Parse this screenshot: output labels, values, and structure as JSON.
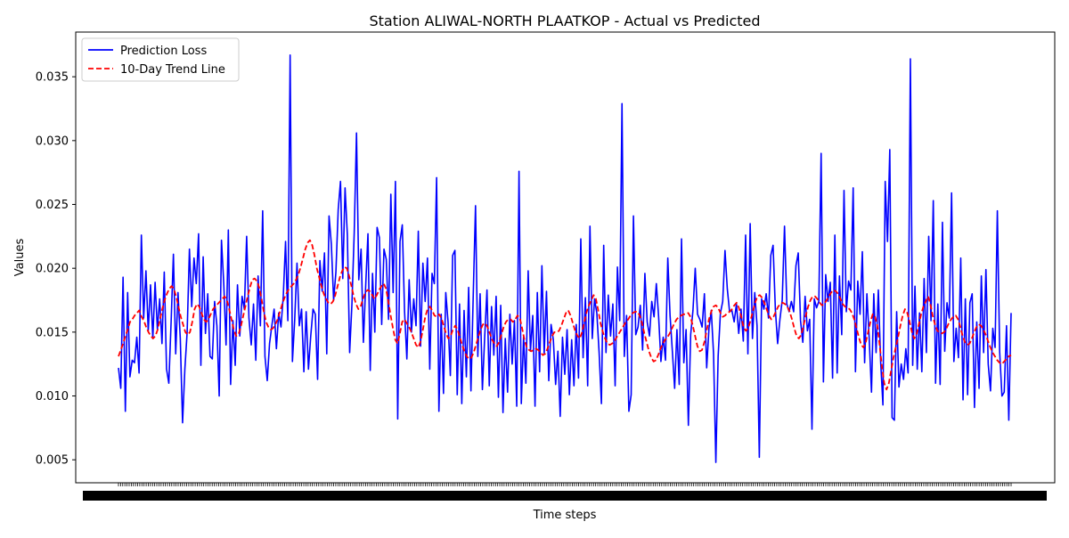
{
  "chart_data": {
    "type": "line",
    "title": "Station ALIWAL-NORTH PLAATKOP - Actual vs Predicted",
    "xlabel": "Time steps",
    "ylabel": "Values",
    "ylim": [
      0.0032,
      0.0385
    ],
    "yticks": [
      "0.005",
      "0.010",
      "0.015",
      "0.020",
      "0.025",
      "0.030",
      "0.035"
    ],
    "x_tick_labels_note": "dense overlapping date labels, illegible",
    "grid": false,
    "legend_position": "upper-left",
    "series": [
      {
        "name": "Prediction Loss",
        "color": "#0000ff",
        "style": "solid",
        "values": [
          0.0122,
          0.0106,
          0.0193,
          0.0088,
          0.0181,
          0.0115,
          0.0128,
          0.0126,
          0.0146,
          0.0118,
          0.0226,
          0.0161,
          0.0198,
          0.0151,
          0.0187,
          0.0145,
          0.0189,
          0.0152,
          0.0176,
          0.0141,
          0.0197,
          0.0121,
          0.011,
          0.0158,
          0.0211,
          0.0133,
          0.0181,
          0.0145,
          0.0079,
          0.0121,
          0.015,
          0.0215,
          0.017,
          0.0208,
          0.0188,
          0.0227,
          0.0124,
          0.0209,
          0.0149,
          0.018,
          0.0131,
          0.0129,
          0.0174,
          0.0155,
          0.01,
          0.0222,
          0.0188,
          0.014,
          0.023,
          0.0109,
          0.0159,
          0.0124,
          0.0187,
          0.0147,
          0.0178,
          0.0168,
          0.0225,
          0.0161,
          0.014,
          0.0172,
          0.0128,
          0.0194,
          0.0155,
          0.0245,
          0.0131,
          0.0112,
          0.0141,
          0.0155,
          0.0168,
          0.0137,
          0.0165,
          0.0154,
          0.0178,
          0.0221,
          0.0159,
          0.0367,
          0.0127,
          0.016,
          0.0204,
          0.0155,
          0.0168,
          0.0119,
          0.0166,
          0.0121,
          0.0147,
          0.0168,
          0.0164,
          0.0113,
          0.0206,
          0.0182,
          0.0212,
          0.0133,
          0.0241,
          0.0219,
          0.0175,
          0.0197,
          0.0246,
          0.0268,
          0.0192,
          0.0263,
          0.0226,
          0.0134,
          0.0172,
          0.0228,
          0.0306,
          0.0191,
          0.0215,
          0.0142,
          0.0186,
          0.0227,
          0.012,
          0.0196,
          0.015,
          0.0232,
          0.0224,
          0.0156,
          0.0215,
          0.0207,
          0.016,
          0.0258,
          0.0181,
          0.0268,
          0.0082,
          0.0221,
          0.0234,
          0.0166,
          0.0129,
          0.0191,
          0.015,
          0.0176,
          0.0155,
          0.0229,
          0.0139,
          0.0204,
          0.0174,
          0.0208,
          0.0121,
          0.0196,
          0.0188,
          0.0271,
          0.0088,
          0.0164,
          0.0102,
          0.0181,
          0.0158,
          0.0116,
          0.021,
          0.0214,
          0.0101,
          0.0172,
          0.0094,
          0.0167,
          0.0115,
          0.0185,
          0.0104,
          0.0179,
          0.0249,
          0.0131,
          0.018,
          0.0105,
          0.0146,
          0.0183,
          0.0108,
          0.017,
          0.0132,
          0.0178,
          0.0099,
          0.0171,
          0.0087,
          0.0145,
          0.0103,
          0.0164,
          0.0125,
          0.0159,
          0.0092,
          0.0276,
          0.0094,
          0.0146,
          0.011,
          0.0198,
          0.0135,
          0.0163,
          0.0092,
          0.0181,
          0.0119,
          0.0202,
          0.0133,
          0.0182,
          0.0112,
          0.0156,
          0.0144,
          0.0109,
          0.0135,
          0.0084,
          0.0146,
          0.0117,
          0.0152,
          0.0101,
          0.0144,
          0.0108,
          0.0156,
          0.0114,
          0.0223,
          0.013,
          0.0177,
          0.0108,
          0.0233,
          0.0145,
          0.0176,
          0.0165,
          0.0134,
          0.0094,
          0.0218,
          0.0134,
          0.0179,
          0.0147,
          0.0172,
          0.0108,
          0.0201,
          0.0159,
          0.0329,
          0.0131,
          0.0163,
          0.0088,
          0.0101,
          0.0241,
          0.0148,
          0.0154,
          0.0171,
          0.0136,
          0.0196,
          0.0158,
          0.0147,
          0.0174,
          0.0162,
          0.0188,
          0.0162,
          0.0127,
          0.0146,
          0.0128,
          0.0208,
          0.0163,
          0.0135,
          0.0106,
          0.0152,
          0.0109,
          0.0223,
          0.0126,
          0.0152,
          0.0077,
          0.0148,
          0.0167,
          0.02,
          0.0164,
          0.016,
          0.0154,
          0.018,
          0.0122,
          0.0153,
          0.0167,
          0.0133,
          0.0048,
          0.0131,
          0.0165,
          0.0174,
          0.0214,
          0.0184,
          0.0166,
          0.0167,
          0.0158,
          0.0172,
          0.0149,
          0.0168,
          0.0143,
          0.0226,
          0.0133,
          0.0235,
          0.0145,
          0.0181,
          0.0155,
          0.0052,
          0.0176,
          0.0168,
          0.018,
          0.0161,
          0.021,
          0.0218,
          0.0168,
          0.0141,
          0.016,
          0.0175,
          0.0233,
          0.0172,
          0.0166,
          0.0174,
          0.0166,
          0.0202,
          0.0212,
          0.0159,
          0.0142,
          0.0178,
          0.0151,
          0.016,
          0.0074,
          0.0176,
          0.0169,
          0.0174,
          0.029,
          0.0111,
          0.0195,
          0.0174,
          0.0189,
          0.0114,
          0.0226,
          0.0118,
          0.0194,
          0.0148,
          0.0261,
          0.0166,
          0.019,
          0.0183,
          0.0263,
          0.0119,
          0.019,
          0.0164,
          0.0213,
          0.0126,
          0.018,
          0.0145,
          0.0103,
          0.018,
          0.0134,
          0.0183,
          0.0127,
          0.0093,
          0.0268,
          0.0221,
          0.0293,
          0.0083,
          0.0081,
          0.0166,
          0.0107,
          0.0125,
          0.0113,
          0.0137,
          0.0118,
          0.0364,
          0.0124,
          0.0186,
          0.0121,
          0.0165,
          0.0119,
          0.0192,
          0.0134,
          0.0225,
          0.0159,
          0.0253,
          0.011,
          0.0172,
          0.0109,
          0.0236,
          0.0135,
          0.0173,
          0.0161,
          0.0259,
          0.0127,
          0.0153,
          0.013,
          0.0208,
          0.0097,
          0.0176,
          0.0101,
          0.0173,
          0.018,
          0.0091,
          0.0158,
          0.0106,
          0.0194,
          0.0134,
          0.0199,
          0.0125,
          0.0104,
          0.0153,
          0.0138,
          0.0245,
          0.0135,
          0.01,
          0.0103,
          0.0155,
          0.0081,
          0.0165
        ]
      },
      {
        "name": "10-Day Trend Line",
        "color": "#ff0000",
        "style": "dashed",
        "values": [
          0.0131,
          0.0136,
          0.0141,
          0.0147,
          0.0152,
          0.0158,
          0.016,
          0.0163,
          0.0165,
          0.0167,
          0.0162,
          0.0159,
          0.0154,
          0.015,
          0.0147,
          0.0145,
          0.0147,
          0.0152,
          0.016,
          0.0168,
          0.0175,
          0.018,
          0.0184,
          0.0186,
          0.0184,
          0.0178,
          0.017,
          0.0162,
          0.0156,
          0.015,
          0.0148,
          0.015,
          0.0158,
          0.0168,
          0.0172,
          0.017,
          0.0165,
          0.016,
          0.0158,
          0.016,
          0.0164,
          0.0168,
          0.017,
          0.0172,
          0.0174,
          0.0176,
          0.0178,
          0.0175,
          0.0168,
          0.016,
          0.0152,
          0.0147,
          0.0148,
          0.0154,
          0.0162,
          0.017,
          0.0178,
          0.0185,
          0.0191,
          0.0192,
          0.019,
          0.0185,
          0.0176,
          0.0166,
          0.0158,
          0.0154,
          0.0152,
          0.0153,
          0.0156,
          0.016,
          0.0166,
          0.0172,
          0.0177,
          0.0181,
          0.0184,
          0.0186,
          0.0188,
          0.0191,
          0.0195,
          0.0201,
          0.0208,
          0.0215,
          0.022,
          0.0222,
          0.0218,
          0.021,
          0.02,
          0.0193,
          0.0186,
          0.018,
          0.0176,
          0.0173,
          0.0172,
          0.0174,
          0.0179,
          0.0186,
          0.0193,
          0.0198,
          0.0201,
          0.02,
          0.0194,
          0.0186,
          0.0178,
          0.0172,
          0.0168,
          0.017,
          0.0176,
          0.0181,
          0.0183,
          0.0182,
          0.0179,
          0.0176,
          0.0179,
          0.0183,
          0.0186,
          0.0188,
          0.0184,
          0.0174,
          0.0163,
          0.0153,
          0.0144,
          0.0141,
          0.0149,
          0.0158,
          0.016,
          0.0157,
          0.0154,
          0.015,
          0.0145,
          0.014,
          0.0138,
          0.0143,
          0.0152,
          0.0162,
          0.0168,
          0.017,
          0.0167,
          0.0163,
          0.0162,
          0.0164,
          0.0161,
          0.0155,
          0.0149,
          0.0145,
          0.0147,
          0.0152,
          0.0155,
          0.0152,
          0.0146,
          0.014,
          0.0135,
          0.0131,
          0.0129,
          0.013,
          0.0134,
          0.014,
          0.0146,
          0.0152,
          0.0156,
          0.0157,
          0.0154,
          0.0149,
          0.0144,
          0.0141,
          0.0139,
          0.0142,
          0.0148,
          0.0154,
          0.0158,
          0.016,
          0.016,
          0.0158,
          0.016,
          0.0163,
          0.0161,
          0.0153,
          0.0144,
          0.0138,
          0.0136,
          0.0135,
          0.0136,
          0.0137,
          0.0136,
          0.0134,
          0.0132,
          0.0133,
          0.0137,
          0.0142,
          0.0147,
          0.015,
          0.015,
          0.0151,
          0.0155,
          0.016,
          0.0165,
          0.0167,
          0.0163,
          0.0157,
          0.0151,
          0.0147,
          0.0145,
          0.015,
          0.0158,
          0.0166,
          0.0171,
          0.0175,
          0.0179,
          0.0176,
          0.0167,
          0.0157,
          0.015,
          0.0145,
          0.0141,
          0.014,
          0.0141,
          0.0143,
          0.0146,
          0.0149,
          0.0152,
          0.0155,
          0.0158,
          0.016,
          0.0163,
          0.0165,
          0.0166,
          0.0166,
          0.0163,
          0.0157,
          0.0149,
          0.0142,
          0.0135,
          0.013,
          0.0127,
          0.0128,
          0.0132,
          0.0137,
          0.0141,
          0.0144,
          0.0146,
          0.0149,
          0.0153,
          0.0157,
          0.016,
          0.0162,
          0.0163,
          0.0164,
          0.0164,
          0.0165,
          0.0162,
          0.0155,
          0.0147,
          0.0139,
          0.0135,
          0.0136,
          0.0142,
          0.0151,
          0.016,
          0.0166,
          0.017,
          0.0171,
          0.0169,
          0.0165,
          0.0162,
          0.0163,
          0.0165,
          0.0166,
          0.0168,
          0.0171,
          0.0173,
          0.0169,
          0.0162,
          0.0154,
          0.0151,
          0.0153,
          0.0159,
          0.0166,
          0.0173,
          0.0178,
          0.0179,
          0.0177,
          0.0173,
          0.0168,
          0.0163,
          0.016,
          0.0162,
          0.0166,
          0.017,
          0.0172,
          0.0173,
          0.0172,
          0.017,
          0.0166,
          0.016,
          0.0153,
          0.0147,
          0.0145,
          0.0148,
          0.0155,
          0.0163,
          0.017,
          0.0175,
          0.0178,
          0.0178,
          0.0176,
          0.0173,
          0.0171,
          0.0172,
          0.0175,
          0.0178,
          0.0181,
          0.0183,
          0.0182,
          0.018,
          0.0176,
          0.0172,
          0.017,
          0.0169,
          0.0168,
          0.0165,
          0.016,
          0.0153,
          0.0146,
          0.014,
          0.0138,
          0.0142,
          0.015,
          0.0158,
          0.0164,
          0.0162,
          0.0155,
          0.014,
          0.0123,
          0.011,
          0.0105,
          0.011,
          0.012,
          0.013,
          0.0138,
          0.0146,
          0.0155,
          0.0163,
          0.0168,
          0.0165,
          0.0158,
          0.015,
          0.0145,
          0.0148,
          0.0156,
          0.0164,
          0.017,
          0.0174,
          0.0178,
          0.0172,
          0.0163,
          0.0156,
          0.0151,
          0.015,
          0.0149,
          0.015,
          0.0153,
          0.0157,
          0.016,
          0.0162,
          0.0163,
          0.016,
          0.0154,
          0.0147,
          0.0142,
          0.014,
          0.0141,
          0.0145,
          0.015,
          0.0154,
          0.0156,
          0.0155,
          0.0152,
          0.0148,
          0.0143,
          0.0138,
          0.0134,
          0.0131,
          0.0128,
          0.0126,
          0.0125,
          0.0127,
          0.0129,
          0.0131,
          0.0132
        ]
      }
    ]
  }
}
